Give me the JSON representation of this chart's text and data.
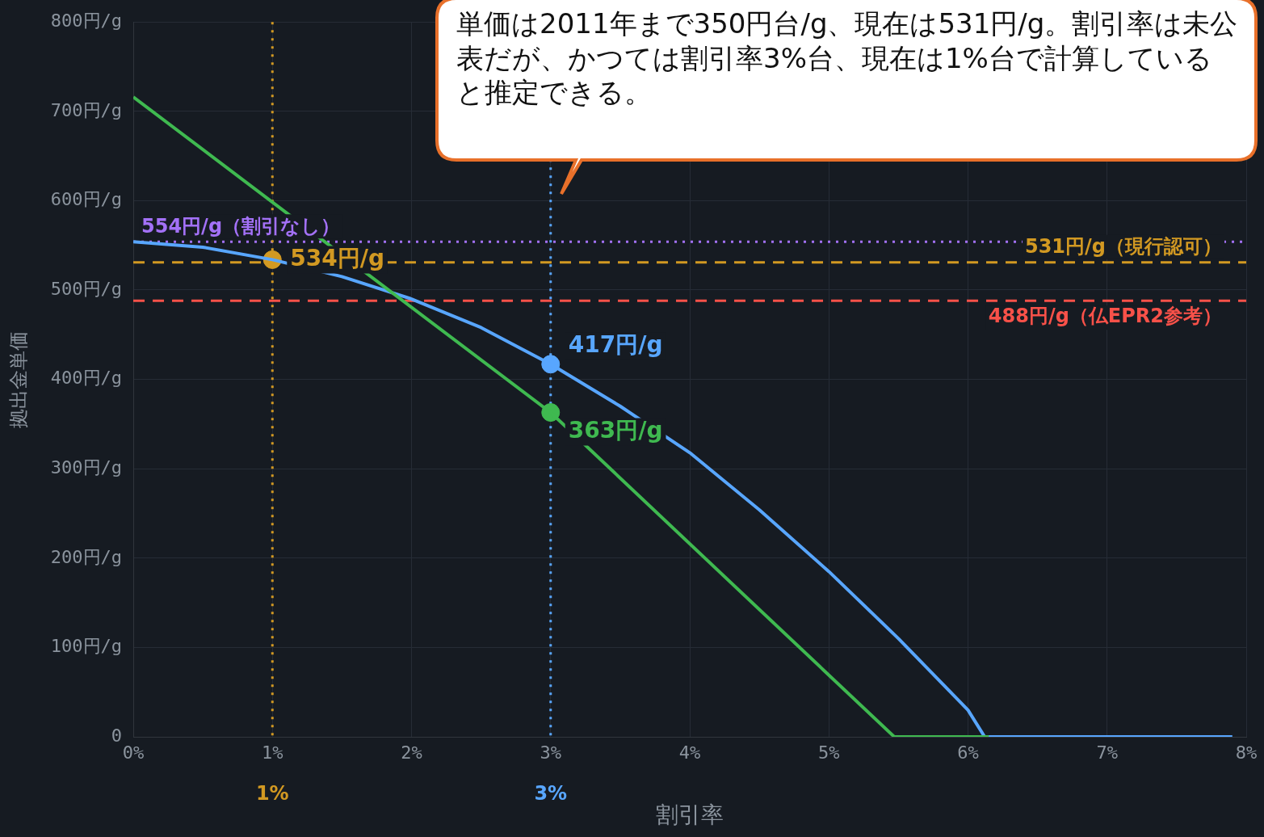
{
  "chart_data": {
    "type": "line",
    "xlabel": "割引率",
    "ylabel": "拠出金単価",
    "xlim": [
      0,
      8
    ],
    "ylim": [
      0,
      800
    ],
    "xticks": [
      {
        "value": 0,
        "label": "0%"
      },
      {
        "value": 1,
        "label": "1%"
      },
      {
        "value": 2,
        "label": "2%"
      },
      {
        "value": 3,
        "label": "3%"
      },
      {
        "value": 4,
        "label": "4%"
      },
      {
        "value": 5,
        "label": "5%"
      },
      {
        "value": 6,
        "label": "6%"
      },
      {
        "value": 7,
        "label": "7%"
      },
      {
        "value": 8,
        "label": "8%"
      }
    ],
    "yticks": [
      0,
      {
        "value": 100,
        "label": "100円/g"
      },
      {
        "value": 200,
        "label": "200円/g"
      },
      {
        "value": 300,
        "label": "300円/g"
      },
      {
        "value": 400,
        "label": "400円/g"
      },
      {
        "value": 500,
        "label": "500円/g"
      },
      {
        "value": 600,
        "label": "600円/g"
      },
      {
        "value": 700,
        "label": "700円/g"
      },
      {
        "value": 800,
        "label": "800円/g"
      }
    ],
    "grid": true,
    "legend": false,
    "series": [
      {
        "color": "#3fb950",
        "marker": "none",
        "x": [
          0,
          3,
          5.47,
          6.15
        ],
        "values": [
          716,
          363,
          0,
          0
        ]
      },
      {
        "color": "#58a6ff",
        "marker": "none",
        "x": [
          0,
          0.5,
          1,
          1.5,
          2,
          2.5,
          3,
          3.5,
          4,
          4.5,
          5,
          5.5,
          5.75,
          6,
          6.12,
          7.9
        ],
        "values": [
          554,
          548,
          534,
          515,
          490,
          458,
          417,
          370,
          318,
          254,
          185,
          110,
          70,
          30,
          0,
          0
        ]
      },
      {
        "type": "scatter",
        "marker": "circle",
        "color": "#58a6ff",
        "x": [
          3
        ],
        "values": [
          417
        ],
        "value_labels": [
          "417円/g"
        ]
      },
      {
        "type": "scatter",
        "marker": "circle",
        "color": "#3fb950",
        "x": [
          3
        ],
        "values": [
          363
        ],
        "value_labels": [
          "363円/g"
        ]
      },
      {
        "type": "scatter",
        "marker": "circle",
        "color": "#d29922",
        "x": [
          1
        ],
        "values": [
          534
        ],
        "value_labels": [
          "534円/g"
        ]
      }
    ],
    "ref_lines": [
      {
        "axis": "y",
        "value": 554,
        "label": "554円/g（割引なし）",
        "color": "#a371f7",
        "line_style": "dotted"
      },
      {
        "axis": "y",
        "value": 531,
        "label": "531円/g（現行認可）",
        "color": "#d29922",
        "line_style": "dashed"
      },
      {
        "axis": "y",
        "value": 488,
        "label": "488円/g（仏EPR2参考）",
        "color": "#f85149",
        "line_style": "dashed"
      },
      {
        "axis": "x",
        "value": 1,
        "label": "1%",
        "color": "#d29922",
        "line_style": "dotted"
      },
      {
        "axis": "x",
        "value": 3,
        "label": "3%",
        "color": "#58a6ff",
        "line_style": "dotted"
      }
    ],
    "annotations": [
      "単価は2011年まで350円台/g、現在は531円/g。割引率は未公表だが、かつては割引率3%台、現在は1%台で計算していると推定できる。"
    ]
  }
}
